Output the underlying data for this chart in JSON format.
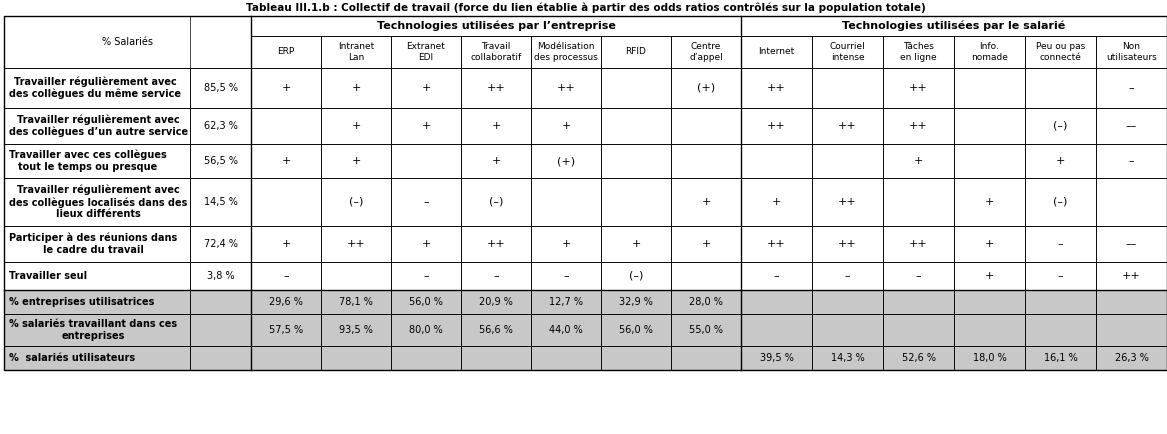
{
  "title": "Tableau III.1.b : Collectif de travail (force du lien établie à partir des odds ratios contrôlés sur la population totale)",
  "header_group1": "Technologies utilisées par l’entreprise",
  "header_group2": "Technologies utilisées par le salarié",
  "col_pct_salaries": "% Salariés",
  "cols_group1": [
    "ERP",
    "Intranet\nLan",
    "Extranet\nEDI",
    "Travail\ncollaboratif",
    "Modélisation\ndes processus",
    "RFID",
    "Centre\nd’appel"
  ],
  "cols_group2": [
    "Internet",
    "Courriel\nintense",
    "Tâches\nen ligne",
    "Info.\nnomade",
    "Peu ou pas\nconnecté",
    "Non\nutilisateurs"
  ],
  "row_labels": [
    "Travailler régulièrement avec\ndes collègues du même service",
    "Travailler régulièrement avec\ndes collègues d’un autre service",
    "Travailler avec ces collègues\ntout le temps ou presque",
    "Travailler régulièrement avec\ndes collègues localisés dans des\nlieux différents",
    "Participer à des réunions dans\nle cadre du travail",
    "Travailler seul"
  ],
  "pct_salaries": [
    "85,5 %",
    "62,3 %",
    "56,5 %",
    "14,5 %",
    "72,4 %",
    "3,8 %"
  ],
  "data_group1": [
    [
      "+",
      "+",
      "+",
      "++",
      "++",
      "",
      "(+)"
    ],
    [
      "",
      "+",
      "+",
      "+",
      "+",
      "",
      ""
    ],
    [
      "+",
      "+",
      "",
      "+",
      "(+)",
      "",
      ""
    ],
    [
      "",
      "(–)",
      "–",
      "(–)",
      "",
      "",
      "+"
    ],
    [
      "+",
      "++",
      "+",
      "++",
      "+",
      "+",
      "+"
    ],
    [
      "–",
      "",
      "–",
      "–",
      "–",
      "(–)",
      ""
    ]
  ],
  "data_group2": [
    [
      "++",
      "",
      "++",
      "",
      "",
      "–"
    ],
    [
      "++",
      "++",
      "++",
      "",
      "(–)",
      "––"
    ],
    [
      "",
      "",
      "+",
      "",
      "+",
      "–"
    ],
    [
      "+",
      "++",
      "",
      "+",
      "(–)",
      ""
    ],
    [
      "++",
      "++",
      "++",
      "+",
      "–",
      "––"
    ],
    [
      "–",
      "–",
      "–",
      "+",
      "–",
      "++"
    ]
  ],
  "footer_rows": [
    {
      "label": "% entreprises utilisatrices",
      "group1_vals": [
        "29,6 %",
        "78,1 %",
        "56,0 %",
        "20,9 %",
        "12,7 %",
        "32,9 %",
        "28,0 %"
      ],
      "group2_vals": [
        "",
        "",
        "",
        "",
        "",
        ""
      ],
      "g1_gray": false,
      "g2_gray": true
    },
    {
      "label": "% salariés travaillant dans ces\nentreprises",
      "group1_vals": [
        "57,5 %",
        "93,5 %",
        "80,0 %",
        "56,6 %",
        "44,0 %",
        "56,0 %",
        "55,0 %"
      ],
      "group2_vals": [
        "",
        "",
        "",
        "",
        "",
        ""
      ],
      "g1_gray": false,
      "g2_gray": true
    },
    {
      "label": "%  salariés utilisateurs",
      "group1_vals": [
        "",
        "",
        "",
        "",
        "",
        "",
        ""
      ],
      "group2_vals": [
        "39,5 %",
        "14,3 %",
        "52,6 %",
        "18,0 %",
        "16,1 %",
        "26,3 %"
      ],
      "g1_gray": true,
      "g2_gray": false
    }
  ],
  "gray_bg": "#c8c8c8",
  "white_bg": "#ffffff"
}
